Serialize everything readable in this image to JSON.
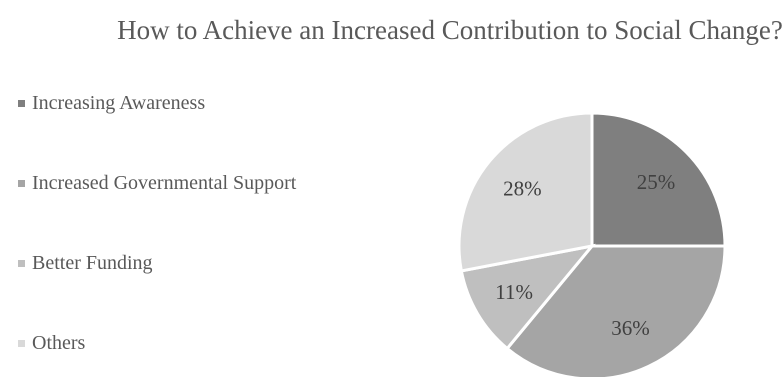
{
  "chart_data": {
    "type": "pie",
    "title": "How to Achieve an Increased Contribution to Social Change?",
    "categories": [
      "Increasing Awareness",
      "Increased Governmental Support",
      "Better Funding",
      "Others"
    ],
    "values": [
      25,
      36,
      11,
      28
    ],
    "labels": [
      "25%",
      "36%",
      "11%",
      "28%"
    ],
    "colors": [
      "#7f7f7f",
      "#a5a5a5",
      "#bfbfbf",
      "#d9d9d9"
    ],
    "legend_position": "left",
    "start_angle_deg": 0,
    "direction": "clockwise"
  }
}
